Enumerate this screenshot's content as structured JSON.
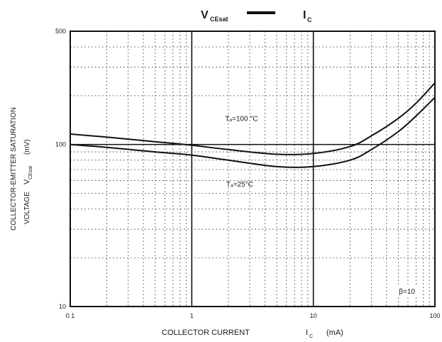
{
  "chart_data": {
    "type": "line",
    "x_scale": "log",
    "y_scale": "log",
    "xlim": [
      0.1,
      100
    ],
    "ylim": [
      10,
      500
    ],
    "grid": true,
    "title": {
      "main": "V",
      "main_sub": "CEsat",
      "dash": "—",
      "second": "I",
      "second_sub": "C"
    },
    "xlabel": {
      "main": "COLLECTOR CURRENT",
      "sym": "I",
      "sub": "C",
      "unit": "(mA)"
    },
    "ylabel": {
      "line1": "COLLECTOR-EMITTER SATURATION",
      "line2_main": "VOLTAGE",
      "line2_sym": "V",
      "line2_sub": "CEsat",
      "line2_unit": "(mV)"
    },
    "x_ticks": [
      {
        "value": 0.1,
        "label": "0.1"
      },
      {
        "value": 1,
        "label": "1"
      },
      {
        "value": 10,
        "label": "10"
      },
      {
        "value": 100,
        "label": "100"
      }
    ],
    "y_ticks": [
      {
        "value": 10,
        "label": "10"
      },
      {
        "value": 100,
        "label": "100"
      },
      {
        "value": 500,
        "label": "500"
      }
    ],
    "series": [
      {
        "name": "Tₐ=100 °C",
        "x": [
          0.1,
          0.2,
          0.5,
          1,
          2,
          5,
          10,
          20,
          30,
          50,
          70,
          100
        ],
        "y": [
          116,
          111,
          104,
          99,
          93,
          87,
          88,
          97,
          113,
          145,
          180,
          240
        ]
      },
      {
        "name": "Tₐ=25°C",
        "x": [
          0.1,
          0.2,
          0.5,
          1,
          2,
          5,
          10,
          20,
          30,
          50,
          70,
          100
        ],
        "y": [
          100,
          96,
          90,
          86,
          80,
          73,
          73,
          80,
          93,
          120,
          150,
          195
        ]
      }
    ],
    "annotations": [
      {
        "text": "Tₐ=100 °C",
        "series": 0
      },
      {
        "text": "Tₐ=25°C",
        "series": 1
      },
      {
        "text": "β=10"
      }
    ]
  }
}
